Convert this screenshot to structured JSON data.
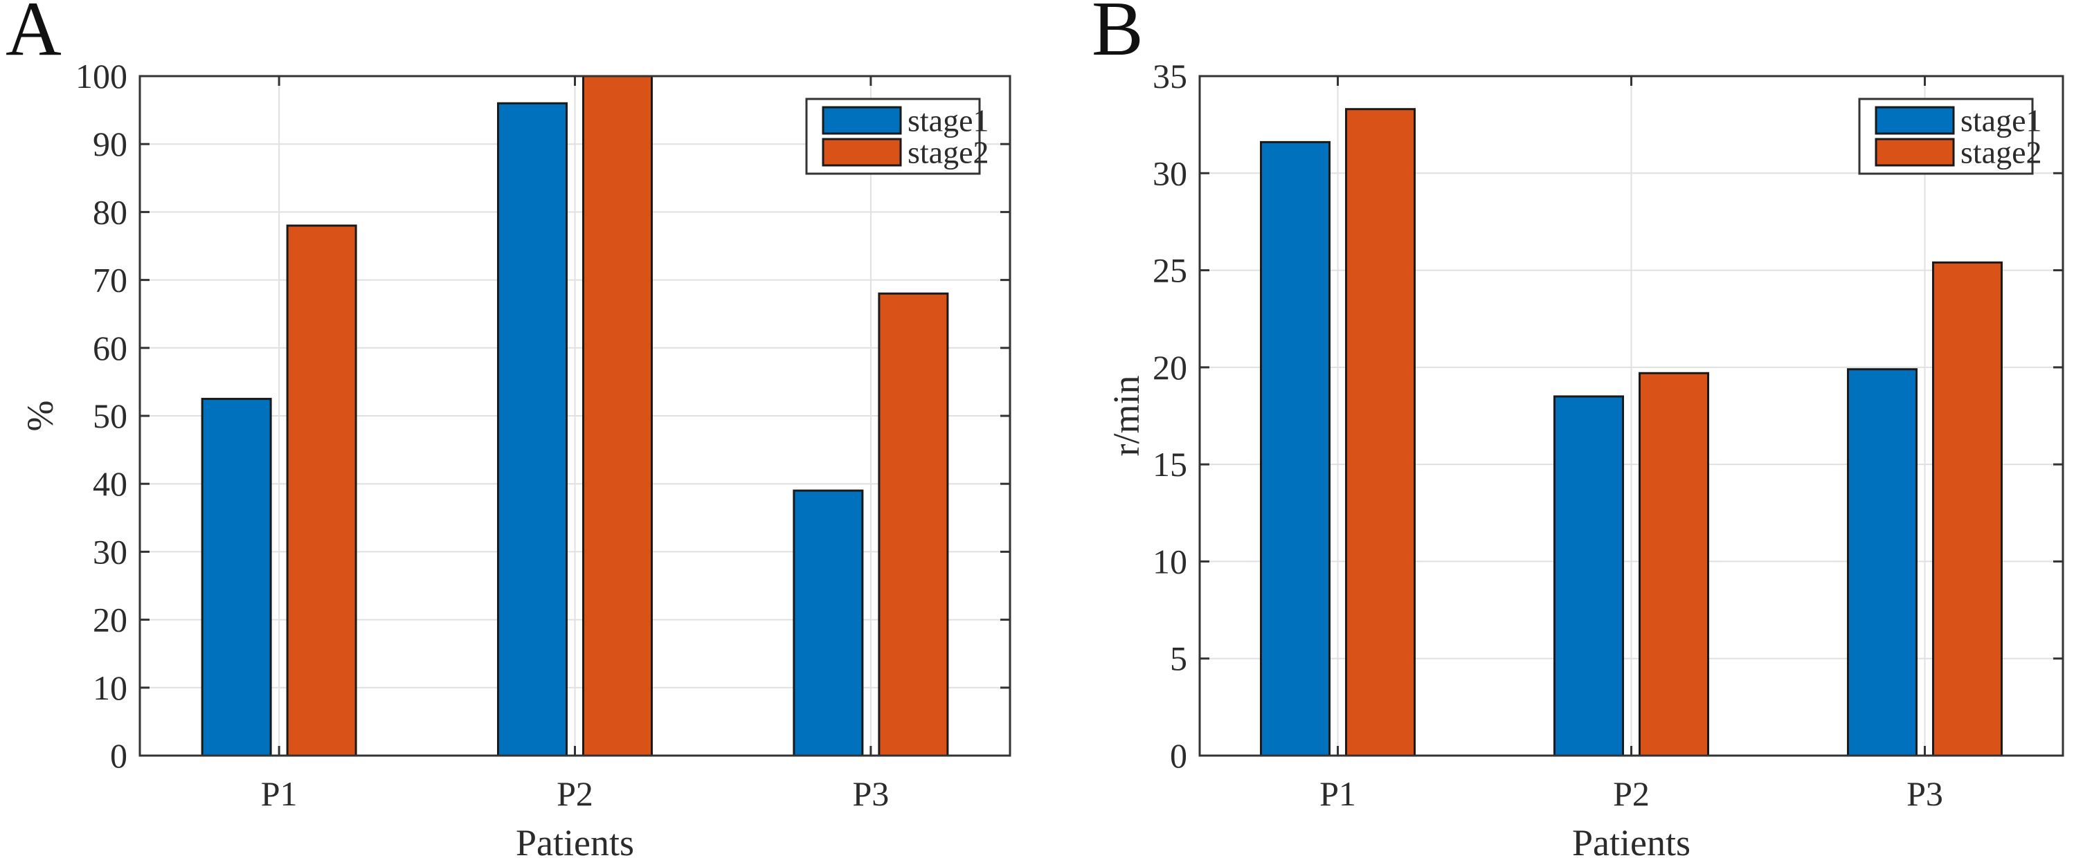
{
  "figure": {
    "background": "#ffffff",
    "description_panels": [
      "A",
      "B"
    ]
  },
  "colors": {
    "stage1": "#0072BD",
    "stage2": "#D95319",
    "bar_edge": "#1a1a1a",
    "axis": "#333333",
    "grid": "#e0e0e0",
    "text": "#2b2b2b"
  },
  "chart_data": [
    {
      "type": "bar",
      "panel_label": "A",
      "title": "",
      "categories": [
        "P1",
        "P2",
        "P3"
      ],
      "series": [
        {
          "name": "stage1",
          "values": [
            52.5,
            96,
            39
          ]
        },
        {
          "name": "stage2",
          "values": [
            78,
            100,
            68
          ]
        }
      ],
      "xlabel": "Patients",
      "ylabel": "%",
      "ylim": [
        0,
        100
      ],
      "ytick_step": 10,
      "grid": true,
      "legend": [
        "stage1",
        "stage2"
      ],
      "legend_position": "top-right"
    },
    {
      "type": "bar",
      "panel_label": "B",
      "title": "",
      "categories": [
        "P1",
        "P2",
        "P3"
      ],
      "series": [
        {
          "name": "stage1",
          "values": [
            31.6,
            18.5,
            19.9
          ]
        },
        {
          "name": "stage2",
          "values": [
            33.3,
            19.7,
            25.4
          ]
        }
      ],
      "xlabel": "Patients",
      "ylabel": "r/min",
      "ylim": [
        0,
        35
      ],
      "ytick_step": 5,
      "grid": true,
      "legend": [
        "stage1",
        "stage2"
      ],
      "legend_position": "top-right"
    }
  ]
}
